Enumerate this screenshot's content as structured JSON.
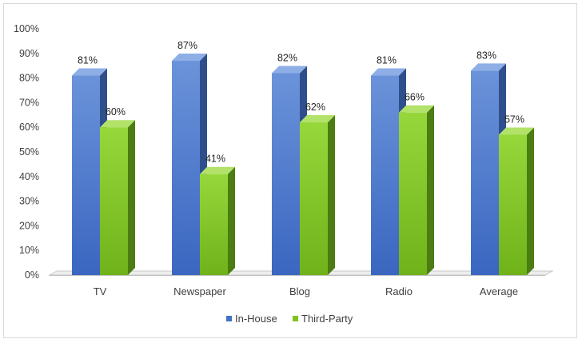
{
  "chart_data": {
    "type": "bar",
    "title": "",
    "xlabel": "",
    "ylabel": "",
    "categories": [
      "TV",
      "Newspaper",
      "Blog",
      "Radio",
      "Average"
    ],
    "series": [
      {
        "name": "In-House",
        "values": [
          81,
          87,
          82,
          81,
          83
        ],
        "labels": [
          "81%",
          "87%",
          "82%",
          "81%",
          "83%"
        ],
        "color": "#4472c4"
      },
      {
        "name": "Third-Party",
        "values": [
          60,
          41,
          62,
          66,
          57
        ],
        "labels": [
          "60%",
          "41%",
          "62%",
          "66%",
          "57%"
        ],
        "color": "#7fc31c"
      }
    ],
    "ylim": [
      0,
      100
    ],
    "yticks": [
      "0%",
      "10%",
      "20%",
      "30%",
      "40%",
      "50%",
      "60%",
      "70%",
      "80%",
      "90%",
      "100%"
    ],
    "grid": false,
    "style": "3d-column",
    "legend_position": "bottom"
  }
}
